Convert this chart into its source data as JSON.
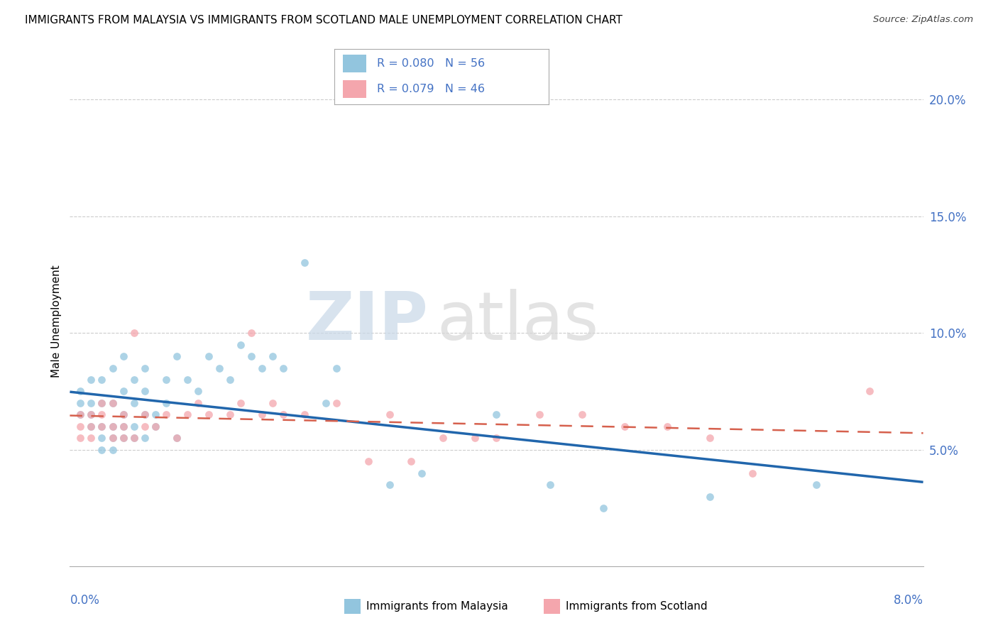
{
  "title": "IMMIGRANTS FROM MALAYSIA VS IMMIGRANTS FROM SCOTLAND MALE UNEMPLOYMENT CORRELATION CHART",
  "source": "Source: ZipAtlas.com",
  "ylabel": "Male Unemployment",
  "xlim": [
    0.0,
    0.08
  ],
  "ylim": [
    0.0,
    0.21
  ],
  "yticks": [
    0.05,
    0.1,
    0.15,
    0.2
  ],
  "ytick_labels": [
    "5.0%",
    "10.0%",
    "15.0%",
    "20.0%"
  ],
  "legend_r1": "R = 0.080",
  "legend_n1": "N = 56",
  "legend_r2": "R = 0.079",
  "legend_n2": "N = 46",
  "color_malaysia": "#92c5de",
  "color_scotland": "#f4a6ad",
  "color_malaysia_line": "#2166ac",
  "color_scotland_line": "#d6604d",
  "watermark_zip": "ZIP",
  "watermark_atlas": "atlas",
  "malaysia_x": [
    0.001,
    0.001,
    0.001,
    0.002,
    0.002,
    0.002,
    0.002,
    0.003,
    0.003,
    0.003,
    0.003,
    0.003,
    0.004,
    0.004,
    0.004,
    0.004,
    0.004,
    0.005,
    0.005,
    0.005,
    0.005,
    0.005,
    0.006,
    0.006,
    0.006,
    0.006,
    0.007,
    0.007,
    0.007,
    0.007,
    0.008,
    0.008,
    0.009,
    0.009,
    0.01,
    0.01,
    0.011,
    0.012,
    0.013,
    0.014,
    0.015,
    0.016,
    0.017,
    0.018,
    0.019,
    0.02,
    0.022,
    0.024,
    0.025,
    0.03,
    0.033,
    0.04,
    0.045,
    0.05,
    0.06,
    0.07
  ],
  "malaysia_y": [
    0.065,
    0.07,
    0.075,
    0.06,
    0.065,
    0.07,
    0.08,
    0.05,
    0.055,
    0.06,
    0.07,
    0.08,
    0.05,
    0.055,
    0.06,
    0.07,
    0.085,
    0.055,
    0.06,
    0.065,
    0.075,
    0.09,
    0.055,
    0.06,
    0.07,
    0.08,
    0.055,
    0.065,
    0.075,
    0.085,
    0.06,
    0.065,
    0.07,
    0.08,
    0.055,
    0.09,
    0.08,
    0.075,
    0.09,
    0.085,
    0.08,
    0.095,
    0.09,
    0.085,
    0.09,
    0.085,
    0.13,
    0.07,
    0.085,
    0.035,
    0.04,
    0.065,
    0.035,
    0.025,
    0.03,
    0.035
  ],
  "scotland_x": [
    0.001,
    0.001,
    0.001,
    0.002,
    0.002,
    0.002,
    0.003,
    0.003,
    0.003,
    0.004,
    0.004,
    0.004,
    0.005,
    0.005,
    0.005,
    0.006,
    0.006,
    0.007,
    0.007,
    0.008,
    0.009,
    0.01,
    0.011,
    0.012,
    0.013,
    0.015,
    0.016,
    0.017,
    0.018,
    0.019,
    0.02,
    0.022,
    0.025,
    0.028,
    0.03,
    0.032,
    0.035,
    0.038,
    0.04,
    0.044,
    0.048,
    0.052,
    0.056,
    0.06,
    0.064,
    0.075
  ],
  "scotland_y": [
    0.065,
    0.06,
    0.055,
    0.065,
    0.06,
    0.055,
    0.06,
    0.065,
    0.07,
    0.055,
    0.06,
    0.07,
    0.055,
    0.06,
    0.065,
    0.055,
    0.1,
    0.06,
    0.065,
    0.06,
    0.065,
    0.055,
    0.065,
    0.07,
    0.065,
    0.065,
    0.07,
    0.1,
    0.065,
    0.07,
    0.065,
    0.065,
    0.07,
    0.045,
    0.065,
    0.045,
    0.055,
    0.055,
    0.055,
    0.065,
    0.065,
    0.06,
    0.06,
    0.055,
    0.04,
    0.075
  ]
}
